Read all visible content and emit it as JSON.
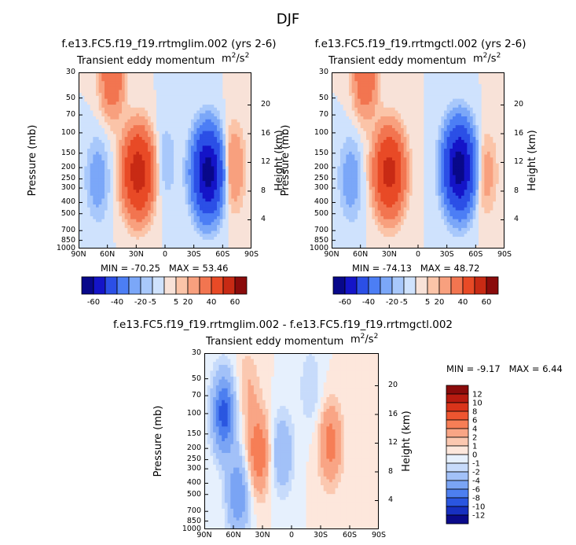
{
  "page_title": "DJF",
  "panels": [
    {
      "title": "f.e13.FC5.f19_f19.rrtmglim.002 (yrs 2-6)",
      "subtitle": "Transient eddy momentum",
      "units_base": "m",
      "units_exp_num": "2",
      "units_den": "s",
      "units_exp_den": "2",
      "min_label": "MIN =",
      "min_value": "-70.25",
      "max_label": "MAX =",
      "max_value": "53.46"
    },
    {
      "title": "f.e13.FC5.f19_f19.rrtmgctl.002 (yrs 2-6)",
      "subtitle": "Transient eddy momentum",
      "units_base": "m",
      "units_exp_num": "2",
      "units_den": "s",
      "units_exp_den": "2",
      "min_label": "MIN =",
      "min_value": "-74.13",
      "max_label": "MAX =",
      "max_value": "48.72"
    },
    {
      "title": "f.e13.FC5.f19_f19.rrtmglim.002 - f.e13.FC5.f19_f19.rrtmgctl.002",
      "subtitle": "Transient eddy momentum",
      "units_base": "m",
      "units_exp_num": "2",
      "units_den": "s",
      "units_exp_den": "2",
      "min_label": "MIN =",
      "min_value": "-9.17",
      "max_label": "MAX =",
      "max_value": "6.44"
    }
  ],
  "axes": {
    "ylabel_left": "Pressure (mb)",
    "ylabel_right": "Height (km)",
    "pressure_ticks": [
      "30",
      "50",
      "70",
      "100",
      "150",
      "200",
      "250",
      "300",
      "400",
      "500",
      "700",
      "850",
      "1000"
    ],
    "height_ticks": [
      "20",
      "16",
      "12",
      "8",
      "4"
    ],
    "lat_ticks": [
      "90N",
      "60N",
      "30N",
      "0",
      "30S",
      "60S",
      "90S"
    ]
  },
  "colorbars": {
    "mean_levels": [
      "-60",
      "-40",
      "-20",
      "-5",
      "5",
      "20",
      "40",
      "60"
    ],
    "diff_levels": [
      "12",
      "10",
      "8",
      "6",
      "4",
      "2",
      "1",
      "0",
      "-1",
      "-2",
      "-4",
      "-6",
      "-8",
      "-10",
      "-12"
    ],
    "mean_colors": [
      "#08088a",
      "#1414c8",
      "#2b4fe6",
      "#4c7ef5",
      "#7ba7f8",
      "#a8c8fb",
      "#cfe2fd",
      "#f8e2d8",
      "#fbc4a8",
      "#f8a07e",
      "#f27550",
      "#e84a26",
      "#c82a14",
      "#8a0b0b"
    ],
    "diff_colors": [
      "#8a0b0b",
      "#b81b10",
      "#d9341a",
      "#ee5530",
      "#f67e56",
      "#f9a585",
      "#fbc8b0",
      "#fde7dc",
      "#e6f0fd",
      "#c7dbfb",
      "#a2c1f8",
      "#7aa4f4",
      "#4d7ff0",
      "#2a56e0",
      "#1730c0",
      "#0a0a8a"
    ]
  },
  "chart_data": [
    {
      "type": "heatmap",
      "title": "f.e13.FC5.f19_f19.rrtmglim.002 (yrs 2-6)",
      "xlabel": "",
      "ylabel": "Pressure (mb)",
      "xlim": [
        "90N",
        "90S"
      ],
      "ylim": [
        1000,
        30
      ],
      "y_scale": "log",
      "min": -70.25,
      "max": 53.46,
      "features": [
        {
          "lat": 28,
          "pressure": 220,
          "value": 53
        },
        {
          "lat": -45,
          "pressure": 220,
          "value": -70
        },
        {
          "lat": 55,
          "pressure": 30,
          "value": 20
        },
        {
          "lat": -70,
          "pressure": 200,
          "value": 12
        },
        {
          "lat": 70,
          "pressure": 250,
          "value": -8
        },
        {
          "lat": 0,
          "pressure": 180,
          "value": -5
        }
      ]
    },
    {
      "type": "heatmap",
      "title": "f.e13.FC5.f19_f19.rrtmgctl.002 (yrs 2-6)",
      "xlabel": "",
      "ylabel": "Pressure (mb)",
      "xlim": [
        "90N",
        "90S"
      ],
      "ylim": [
        1000,
        30
      ],
      "y_scale": "log",
      "min": -74.13,
      "max": 48.72,
      "features": [
        {
          "lat": 30,
          "pressure": 220,
          "value": 48
        },
        {
          "lat": -43,
          "pressure": 200,
          "value": -74
        },
        {
          "lat": 55,
          "pressure": 30,
          "value": 20
        },
        {
          "lat": -70,
          "pressure": 220,
          "value": 8
        },
        {
          "lat": 70,
          "pressure": 250,
          "value": -8
        }
      ]
    },
    {
      "type": "heatmap",
      "title": "f.e13.FC5.f19_f19.rrtmglim.002 - f.e13.FC5.f19_f19.rrtmgctl.002",
      "xlabel": "",
      "ylabel": "Pressure (mb)",
      "xlim": [
        "90N",
        "90S"
      ],
      "ylim": [
        1000,
        30
      ],
      "y_scale": "log",
      "min": -9.17,
      "max": 6.44,
      "features": [
        {
          "lat": 70,
          "pressure": 100,
          "value": -9
        },
        {
          "lat": 55,
          "pressure": 500,
          "value": -6
        },
        {
          "lat": 34,
          "pressure": 220,
          "value": 6
        },
        {
          "lat": 10,
          "pressure": 220,
          "value": -4
        },
        {
          "lat": -40,
          "pressure": 180,
          "value": 5
        },
        {
          "lat": -20,
          "pressure": 60,
          "value": -2
        },
        {
          "lat": 45,
          "pressure": 60,
          "value": 2
        }
      ]
    }
  ]
}
